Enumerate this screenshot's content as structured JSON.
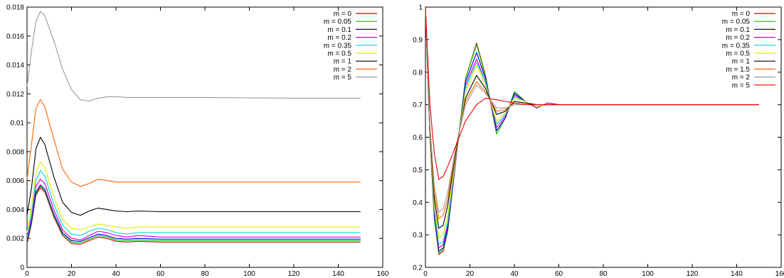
{
  "chart_data": [
    {
      "type": "line",
      "title": "",
      "xlabel": "",
      "ylabel": "",
      "xlim": [
        0,
        160
      ],
      "ylim": [
        0,
        0.018
      ],
      "xticks": [
        0,
        20,
        40,
        60,
        80,
        100,
        120,
        140,
        160
      ],
      "yticks": [
        0,
        0.002,
        0.004,
        0.006,
        0.008,
        0.01,
        0.012,
        0.014,
        0.016,
        0.018
      ],
      "xtick_labels": [
        "0",
        "20",
        "40",
        "60",
        "80",
        "100",
        "120",
        "140",
        "160"
      ],
      "ytick_labels": [
        "0",
        "0.002",
        "0.004",
        "0.006",
        "0.008",
        "0.01",
        "0.012",
        "0.014",
        "0.016",
        "0.018"
      ],
      "grid": false,
      "legend_position": "top-right",
      "x": [
        0,
        2,
        4,
        6,
        8,
        12,
        16,
        20,
        24,
        28,
        32,
        36,
        40,
        45,
        50,
        60,
        80,
        100,
        120,
        150
      ],
      "series": [
        {
          "name": "m = 0",
          "color": "#cc0000",
          "values": [
            0.0016,
            0.003,
            0.005,
            0.0055,
            0.0052,
            0.0035,
            0.0022,
            0.00165,
            0.0016,
            0.00185,
            0.0021,
            0.002,
            0.0018,
            0.00175,
            0.0018,
            0.00175,
            0.00175,
            0.00175,
            0.00175,
            0.00175
          ]
        },
        {
          "name": "m = 0.05",
          "color": "#00cc00",
          "values": [
            0.0017,
            0.0031,
            0.0051,
            0.0056,
            0.0053,
            0.0036,
            0.0023,
            0.00175,
            0.0017,
            0.00195,
            0.0022,
            0.0021,
            0.0019,
            0.00185,
            0.0019,
            0.00185,
            0.00185,
            0.00185,
            0.00185,
            0.00185
          ]
        },
        {
          "name": "m = 0.1",
          "color": "#0000cc",
          "values": [
            0.0018,
            0.0032,
            0.0052,
            0.0057,
            0.0054,
            0.0037,
            0.0024,
            0.00185,
            0.0018,
            0.00205,
            0.0023,
            0.0022,
            0.002,
            0.00195,
            0.002,
            0.00195,
            0.00195,
            0.00195,
            0.00195,
            0.00195
          ]
        },
        {
          "name": "m = 0.2",
          "color": "#cc00cc",
          "values": [
            0.0019,
            0.0034,
            0.0056,
            0.0061,
            0.0058,
            0.004,
            0.0026,
            0.002,
            0.0019,
            0.0022,
            0.0025,
            0.0024,
            0.0022,
            0.0021,
            0.0022,
            0.0021,
            0.0021,
            0.0021,
            0.0021,
            0.0021
          ]
        },
        {
          "name": "m = 0.35",
          "color": "#00d8d8",
          "values": [
            0.0021,
            0.0037,
            0.006,
            0.0067,
            0.0063,
            0.0044,
            0.0029,
            0.0023,
            0.0022,
            0.0025,
            0.0027,
            0.0026,
            0.0024,
            0.0023,
            0.0024,
            0.0024,
            0.0024,
            0.0024,
            0.0024,
            0.0024
          ]
        },
        {
          "name": "m = 0.5",
          "color": "#e8e800",
          "values": [
            0.0024,
            0.0042,
            0.0066,
            0.0073,
            0.0069,
            0.0049,
            0.0033,
            0.0027,
            0.0026,
            0.0028,
            0.003,
            0.0029,
            0.0028,
            0.0027,
            0.0028,
            0.0028,
            0.0028,
            0.0028,
            0.0028,
            0.0028
          ]
        },
        {
          "name": "m = 1",
          "color": "#000000",
          "values": [
            0.0036,
            0.0055,
            0.0082,
            0.009,
            0.0085,
            0.0063,
            0.0045,
            0.0038,
            0.0036,
            0.0039,
            0.0041,
            0.004,
            0.0039,
            0.00385,
            0.0039,
            0.00385,
            0.00385,
            0.00385,
            0.00385,
            0.00385
          ]
        },
        {
          "name": "m = 2",
          "color": "#ff6600",
          "values": [
            0.0061,
            0.0085,
            0.011,
            0.0116,
            0.0111,
            0.0089,
            0.0068,
            0.0059,
            0.0056,
            0.0058,
            0.0061,
            0.006,
            0.0059,
            0.0059,
            0.0059,
            0.0059,
            0.0059,
            0.0059,
            0.0059,
            0.0059
          ]
        },
        {
          "name": "m = 5",
          "color": "#999999",
          "values": [
            0.0125,
            0.015,
            0.017,
            0.0177,
            0.0174,
            0.0157,
            0.0137,
            0.0123,
            0.0116,
            0.0115,
            0.0117,
            0.0118,
            0.0118,
            0.01175,
            0.01175,
            0.01175,
            0.01175,
            0.01172,
            0.0117,
            0.0117
          ]
        }
      ]
    },
    {
      "type": "line",
      "title": "",
      "xlabel": "",
      "ylabel": "",
      "xlim": [
        0,
        160
      ],
      "ylim": [
        0.2,
        1
      ],
      "xticks": [
        0,
        20,
        40,
        60,
        80,
        100,
        120,
        140,
        160
      ],
      "yticks": [
        0.2,
        0.3,
        0.4,
        0.5,
        0.6,
        0.7,
        0.8,
        0.9,
        1
      ],
      "xtick_labels": [
        "0",
        "20",
        "40",
        "60",
        "80",
        "100",
        "120",
        "140",
        "160"
      ],
      "ytick_labels": [
        "0.2",
        "0.3",
        "0.4",
        "0.5",
        "0.6",
        "0.7",
        "0.8",
        "0.9",
        "1"
      ],
      "grid": false,
      "legend_position": "top-right",
      "x": [
        0,
        2,
        4,
        6,
        8,
        10,
        14,
        18,
        23,
        27,
        32,
        36,
        40,
        45,
        50,
        55,
        60,
        70,
        80,
        100,
        150
      ],
      "series": [
        {
          "name": "m = 0",
          "color": "#cc0000",
          "values": [
            1.0,
            0.6,
            0.35,
            0.24,
            0.25,
            0.31,
            0.55,
            0.78,
            0.89,
            0.79,
            0.61,
            0.66,
            0.74,
            0.71,
            0.69,
            0.705,
            0.7,
            0.7,
            0.7,
            0.7,
            0.7
          ]
        },
        {
          "name": "m = 0.05",
          "color": "#00cc00",
          "values": [
            1.0,
            0.6,
            0.35,
            0.245,
            0.255,
            0.31,
            0.55,
            0.78,
            0.885,
            0.785,
            0.61,
            0.66,
            0.74,
            0.71,
            0.69,
            0.705,
            0.7,
            0.7,
            0.7,
            0.7,
            0.7
          ]
        },
        {
          "name": "m = 0.1",
          "color": "#0000cc",
          "values": [
            1.0,
            0.6,
            0.36,
            0.25,
            0.26,
            0.32,
            0.55,
            0.77,
            0.86,
            0.78,
            0.62,
            0.66,
            0.735,
            0.71,
            0.69,
            0.705,
            0.7,
            0.7,
            0.7,
            0.7,
            0.7
          ]
        },
        {
          "name": "m = 0.2",
          "color": "#cc00cc",
          "values": [
            1.0,
            0.6,
            0.37,
            0.26,
            0.27,
            0.33,
            0.55,
            0.76,
            0.84,
            0.77,
            0.63,
            0.665,
            0.73,
            0.71,
            0.69,
            0.705,
            0.7,
            0.7,
            0.7,
            0.7,
            0.7
          ]
        },
        {
          "name": "m = 0.35",
          "color": "#00d8d8",
          "values": [
            1.0,
            0.6,
            0.38,
            0.27,
            0.28,
            0.34,
            0.56,
            0.75,
            0.83,
            0.77,
            0.64,
            0.67,
            0.725,
            0.71,
            0.695,
            0.7,
            0.7,
            0.7,
            0.7,
            0.7,
            0.7
          ]
        },
        {
          "name": "m = 0.5",
          "color": "#e8e800",
          "values": [
            1.0,
            0.61,
            0.39,
            0.29,
            0.3,
            0.36,
            0.56,
            0.74,
            0.82,
            0.76,
            0.65,
            0.675,
            0.72,
            0.71,
            0.695,
            0.7,
            0.7,
            0.7,
            0.7,
            0.7,
            0.7
          ]
        },
        {
          "name": "m = 1",
          "color": "#000000",
          "values": [
            1.0,
            0.62,
            0.41,
            0.32,
            0.33,
            0.39,
            0.57,
            0.72,
            0.79,
            0.75,
            0.67,
            0.68,
            0.71,
            0.705,
            0.7,
            0.7,
            0.7,
            0.7,
            0.7,
            0.7,
            0.7
          ]
        },
        {
          "name": "m = 1.5",
          "color": "#ff6600",
          "values": [
            1.0,
            0.63,
            0.43,
            0.35,
            0.36,
            0.41,
            0.58,
            0.71,
            0.77,
            0.74,
            0.68,
            0.685,
            0.705,
            0.7,
            0.7,
            0.7,
            0.7,
            0.7,
            0.7,
            0.7,
            0.7
          ]
        },
        {
          "name": "m = 2",
          "color": "#999999",
          "values": [
            1.0,
            0.64,
            0.45,
            0.37,
            0.38,
            0.43,
            0.58,
            0.7,
            0.76,
            0.735,
            0.69,
            0.69,
            0.7,
            0.7,
            0.7,
            0.7,
            0.7,
            0.7,
            0.7,
            0.7,
            0.7
          ]
        },
        {
          "name": "m = 5",
          "color": "#ee0000",
          "values": [
            1.0,
            0.7,
            0.55,
            0.47,
            0.48,
            0.51,
            0.58,
            0.65,
            0.7,
            0.72,
            0.715,
            0.71,
            0.705,
            0.7,
            0.7,
            0.7,
            0.7,
            0.7,
            0.7,
            0.7,
            0.7
          ]
        }
      ]
    }
  ]
}
